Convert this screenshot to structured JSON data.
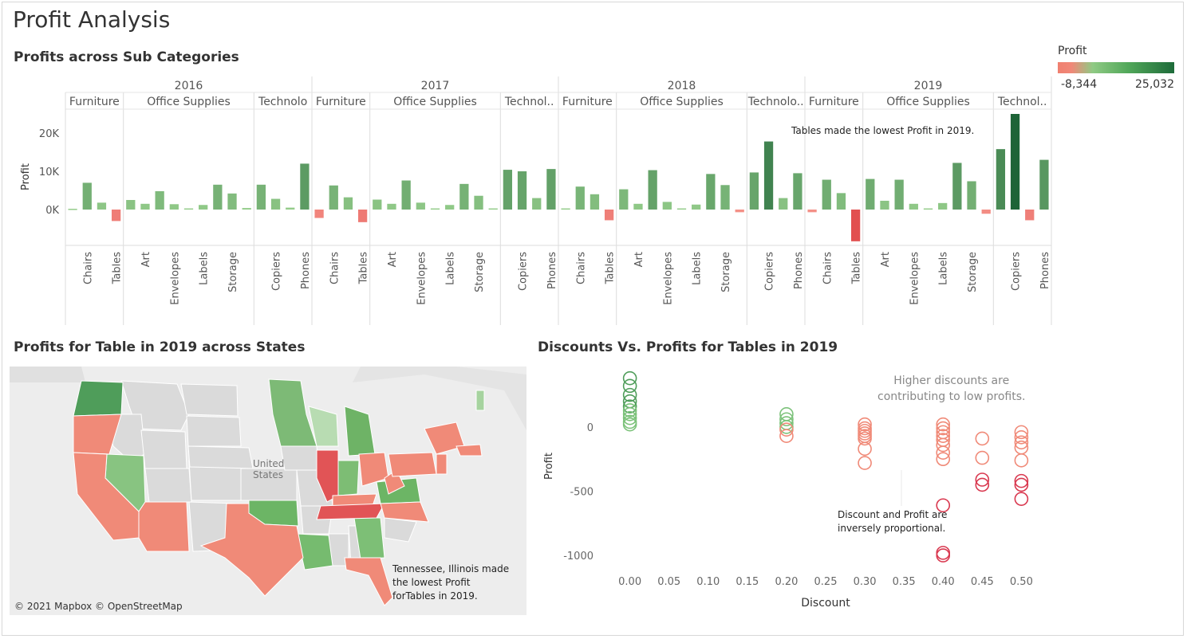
{
  "title": "Profit Analysis",
  "legend": {
    "title": "Profit",
    "min": "-8,344",
    "max": "25,032"
  },
  "bar_section": {
    "title": "Profits across Sub Categories",
    "ylabel": "Profit",
    "annotation": "Tables made the lowest Profit in 2019."
  },
  "map_section": {
    "title": "Profits for Table in 2019 across States",
    "country_label_1": "United",
    "country_label_2": "States",
    "credit": "© 2021 Mapbox © OpenStreetMap",
    "annotation_lines": [
      "Tennessee, Illinois made",
      "the lowest Profit",
      "forTables in 2019."
    ]
  },
  "scatter_section": {
    "title": "Discounts Vs. Profits for Tables in 2019",
    "annotation_top": [
      "Higher discounts are",
      "contributing to low profits."
    ],
    "annotation_mid": [
      "Discount and Profit are",
      "inversely proportional."
    ]
  },
  "chart_data": [
    {
      "type": "bar",
      "title": "Profits across Sub Categories",
      "ylabel": "Profit",
      "xlabel": "",
      "ylim": [
        -8344,
        27000
      ],
      "yticks": [
        {
          "v": 0,
          "label": "0K"
        },
        {
          "v": 10000,
          "label": "10K"
        },
        {
          "v": 20000,
          "label": "20K"
        }
      ],
      "years": [
        {
          "year": "2016",
          "categories": [
            {
              "name": "Furniture",
              "label": "Furniture",
              "subs": [
                {
                  "name": "",
                  "value": 200
                },
                {
                  "name": "Chairs",
                  "value": 7000
                },
                {
                  "name": "",
                  "value": 1800
                },
                {
                  "name": "Tables",
                  "value": -3000
                }
              ]
            },
            {
              "name": "Office Supplies",
              "label": "Office Supplies",
              "subs": [
                {
                  "name": "",
                  "value": 2500
                },
                {
                  "name": "Art",
                  "value": 1500
                },
                {
                  "name": "",
                  "value": 4800
                },
                {
                  "name": "Envelopes",
                  "value": 1400
                },
                {
                  "name": "",
                  "value": 300
                },
                {
                  "name": "Labels",
                  "value": 1200
                },
                {
                  "name": "",
                  "value": 6500
                },
                {
                  "name": "Storage",
                  "value": 4200
                },
                {
                  "name": "",
                  "value": 400
                }
              ]
            },
            {
              "name": "Technology",
              "label": "Technolo",
              "subs": [
                {
                  "name": "",
                  "value": 6500
                },
                {
                  "name": "Copiers",
                  "value": 2800
                },
                {
                  "name": "",
                  "value": 500
                },
                {
                  "name": "Phones",
                  "value": 12000
                }
              ]
            }
          ]
        },
        {
          "year": "2017",
          "categories": [
            {
              "name": "Furniture",
              "label": "Furniture",
              "subs": [
                {
                  "name": "",
                  "value": -2200
                },
                {
                  "name": "Chairs",
                  "value": 6300
                },
                {
                  "name": "",
                  "value": 3200
                },
                {
                  "name": "Tables",
                  "value": -3300
                }
              ]
            },
            {
              "name": "Office Supplies",
              "label": "Office Supplies",
              "subs": [
                {
                  "name": "",
                  "value": 2600
                },
                {
                  "name": "Art",
                  "value": 1500
                },
                {
                  "name": "",
                  "value": 7600
                },
                {
                  "name": "Envelopes",
                  "value": 1800
                },
                {
                  "name": "",
                  "value": 300
                },
                {
                  "name": "Labels",
                  "value": 1200
                },
                {
                  "name": "",
                  "value": 6700
                },
                {
                  "name": "Storage",
                  "value": 3600
                },
                {
                  "name": "",
                  "value": 300
                }
              ]
            },
            {
              "name": "Technology",
              "label": "Technol..",
              "subs": [
                {
                  "name": "",
                  "value": 10400
                },
                {
                  "name": "Copiers",
                  "value": 10000
                },
                {
                  "name": "",
                  "value": 3000
                },
                {
                  "name": "Phones",
                  "value": 10600
                }
              ]
            }
          ]
        },
        {
          "year": "2018",
          "categories": [
            {
              "name": "Furniture",
              "label": "Furniture",
              "subs": [
                {
                  "name": "",
                  "value": 300
                },
                {
                  "name": "Chairs",
                  "value": 6000
                },
                {
                  "name": "",
                  "value": 4000
                },
                {
                  "name": "Tables",
                  "value": -2800
                }
              ]
            },
            {
              "name": "Office Supplies",
              "label": "Office Supplies",
              "subs": [
                {
                  "name": "",
                  "value": 5300
                },
                {
                  "name": "Art",
                  "value": 1500
                },
                {
                  "name": "",
                  "value": 10300
                },
                {
                  "name": "Envelopes",
                  "value": 2000
                },
                {
                  "name": "",
                  "value": 300
                },
                {
                  "name": "Labels",
                  "value": 1300
                },
                {
                  "name": "",
                  "value": 9300
                },
                {
                  "name": "Storage",
                  "value": 6400
                },
                {
                  "name": "",
                  "value": -700
                }
              ]
            },
            {
              "name": "Technology",
              "label": "Technolo..",
              "subs": [
                {
                  "name": "",
                  "value": 9700
                },
                {
                  "name": "Copiers",
                  "value": 17800
                },
                {
                  "name": "",
                  "value": 3000
                },
                {
                  "name": "Phones",
                  "value": 9500
                }
              ]
            }
          ]
        },
        {
          "year": "2019",
          "categories": [
            {
              "name": "Furniture",
              "label": "Furniture",
              "subs": [
                {
                  "name": "",
                  "value": -700
                },
                {
                  "name": "Chairs",
                  "value": 7800
                },
                {
                  "name": "",
                  "value": 4300
                },
                {
                  "name": "Tables",
                  "value": -8300
                }
              ]
            },
            {
              "name": "Office Supplies",
              "label": "Office Supplies",
              "subs": [
                {
                  "name": "",
                  "value": 8000
                },
                {
                  "name": "Art",
                  "value": 2300
                },
                {
                  "name": "",
                  "value": 7800
                },
                {
                  "name": "Envelopes",
                  "value": 1500
                },
                {
                  "name": "",
                  "value": 300
                },
                {
                  "name": "Labels",
                  "value": 1700
                },
                {
                  "name": "",
                  "value": 12200
                },
                {
                  "name": "Storage",
                  "value": 7400
                },
                {
                  "name": "",
                  "value": -1100
                }
              ]
            },
            {
              "name": "Technology",
              "label": "Technol..",
              "subs": [
                {
                  "name": "",
                  "value": 15800
                },
                {
                  "name": "Copiers",
                  "value": 25000
                },
                {
                  "name": "",
                  "value": -2800
                },
                {
                  "name": "Phones",
                  "value": 13000
                }
              ]
            }
          ]
        }
      ]
    },
    {
      "type": "map",
      "title": "Profits for Table in 2019 across States",
      "states_profit_sign": {
        "Washington": "positive",
        "Oregon": "negative",
        "California": "negative",
        "Nevada": "positive",
        "Arizona": "negative",
        "Texas": "negative",
        "Oklahoma": "positive",
        "Louisiana": "positive",
        "Minnesota": "positive",
        "Wisconsin": "positive",
        "Michigan": "positive",
        "Illinois": "negative",
        "Indiana": "positive",
        "Ohio": "negative",
        "Kentucky": "negative",
        "Tennessee": "negative",
        "Georgia": "positive",
        "Florida": "negative",
        "North Carolina": "negative",
        "Virginia": "positive",
        "Pennsylvania": "negative",
        "New York": "negative",
        "New Jersey": "negative",
        "Massachusetts": "negative",
        "Vermont": "positive",
        "West Virginia": "negative",
        "Alabama": "neutral"
      }
    },
    {
      "type": "scatter",
      "title": "Discounts Vs. Profits for Tables in 2019",
      "xlabel": "Discount",
      "ylabel": "Profit",
      "xlim": [
        -0.02,
        0.52
      ],
      "ylim": [
        -1080,
        440
      ],
      "xticks": [
        "0.00",
        "0.05",
        "0.10",
        "0.15",
        "0.20",
        "0.25",
        "0.30",
        "0.35",
        "0.40",
        "0.45",
        "0.50"
      ],
      "yticks": [
        {
          "v": 0,
          "label": "0"
        },
        {
          "v": -500,
          "label": "-500"
        },
        {
          "v": -1000,
          "label": "-1000"
        }
      ],
      "points": [
        {
          "x": 0.0,
          "y": 380
        },
        {
          "x": 0.0,
          "y": 320
        },
        {
          "x": 0.0,
          "y": 250
        },
        {
          "x": 0.0,
          "y": 200
        },
        {
          "x": 0.0,
          "y": 160
        },
        {
          "x": 0.0,
          "y": 130
        },
        {
          "x": 0.0,
          "y": 100
        },
        {
          "x": 0.0,
          "y": 70
        },
        {
          "x": 0.0,
          "y": 40
        },
        {
          "x": 0.0,
          "y": 20
        },
        {
          "x": 0.2,
          "y": 100
        },
        {
          "x": 0.2,
          "y": 60
        },
        {
          "x": 0.2,
          "y": 30
        },
        {
          "x": 0.2,
          "y": 0
        },
        {
          "x": 0.2,
          "y": -20
        },
        {
          "x": 0.2,
          "y": -70
        },
        {
          "x": 0.3,
          "y": 20
        },
        {
          "x": 0.3,
          "y": -10
        },
        {
          "x": 0.3,
          "y": -30
        },
        {
          "x": 0.3,
          "y": -50
        },
        {
          "x": 0.3,
          "y": -70
        },
        {
          "x": 0.3,
          "y": -90
        },
        {
          "x": 0.3,
          "y": -170
        },
        {
          "x": 0.3,
          "y": -280
        },
        {
          "x": 0.4,
          "y": 20
        },
        {
          "x": 0.4,
          "y": -10
        },
        {
          "x": 0.4,
          "y": -40
        },
        {
          "x": 0.4,
          "y": -70
        },
        {
          "x": 0.4,
          "y": -100
        },
        {
          "x": 0.4,
          "y": -140
        },
        {
          "x": 0.4,
          "y": -200
        },
        {
          "x": 0.4,
          "y": -250
        },
        {
          "x": 0.4,
          "y": -610
        },
        {
          "x": 0.4,
          "y": -980
        },
        {
          "x": 0.4,
          "y": -1000
        },
        {
          "x": 0.45,
          "y": -90
        },
        {
          "x": 0.45,
          "y": -240
        },
        {
          "x": 0.45,
          "y": -410
        },
        {
          "x": 0.45,
          "y": -450
        },
        {
          "x": 0.5,
          "y": -40
        },
        {
          "x": 0.5,
          "y": -80
        },
        {
          "x": 0.5,
          "y": -120
        },
        {
          "x": 0.5,
          "y": -160
        },
        {
          "x": 0.5,
          "y": -260
        },
        {
          "x": 0.5,
          "y": -420
        },
        {
          "x": 0.5,
          "y": -450
        },
        {
          "x": 0.5,
          "y": -560
        }
      ]
    }
  ]
}
